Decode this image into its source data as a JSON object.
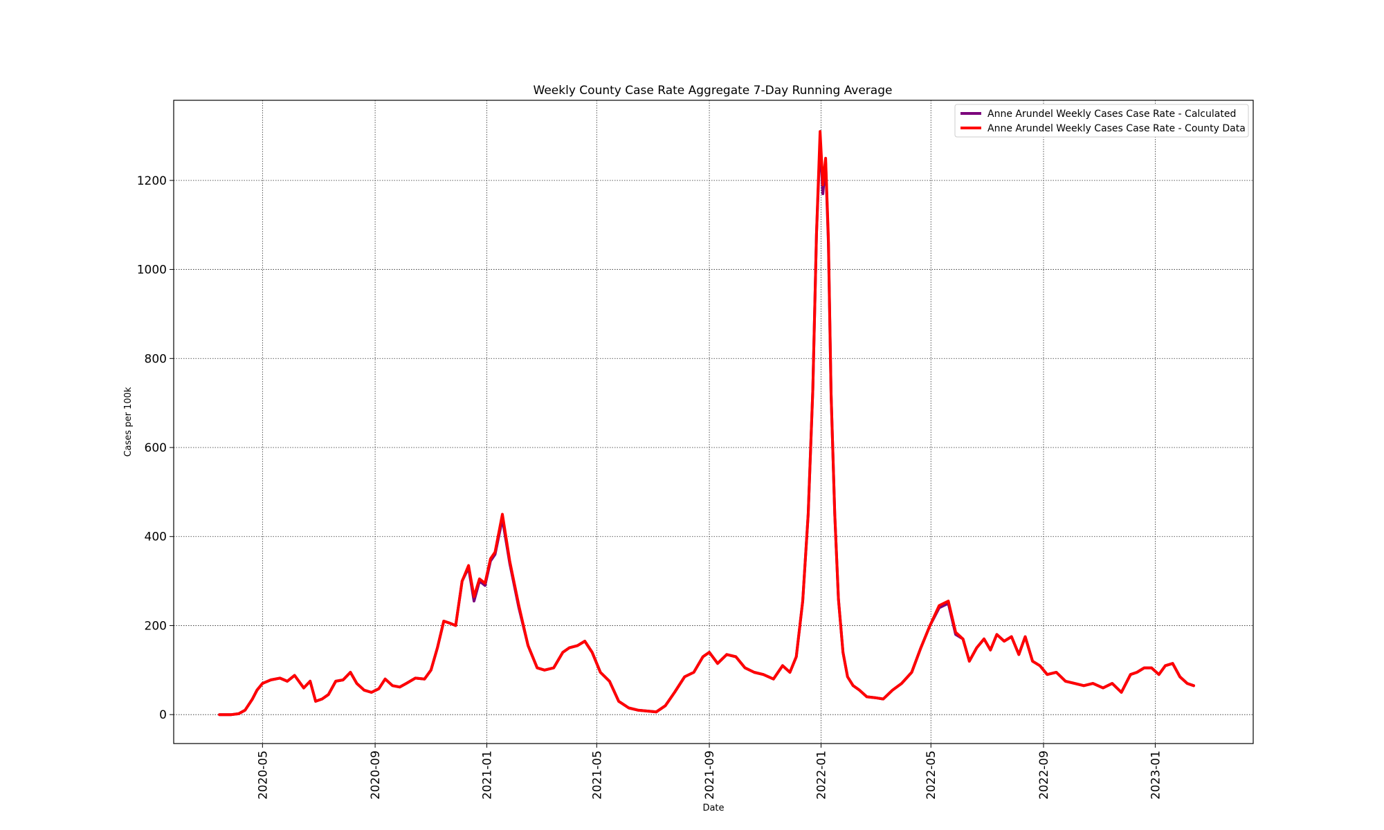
{
  "chart_data": {
    "type": "line",
    "title": "Weekly County Case Rate Aggregate 7-Day Running Average",
    "xlabel": "Date",
    "ylabel": "Cases per 100k",
    "ylim": [
      -65,
      1380
    ],
    "yticks": [
      0,
      200,
      400,
      600,
      800,
      1000,
      1200
    ],
    "xlim": [
      "2020-01-25",
      "2023-04-18"
    ],
    "xticks": [
      "2020-05",
      "2020-09",
      "2021-01",
      "2021-05",
      "2021-09",
      "2022-01",
      "2022-05",
      "2022-09",
      "2023-01"
    ],
    "grid": true,
    "legend_position": "top-right",
    "series": [
      {
        "name": "Anne Arundel Weekly Cases Case Rate - Calculated",
        "color": "#7B007B",
        "x": [
          "2020-03-15",
          "2020-03-28",
          "2020-04-05",
          "2020-04-12",
          "2020-04-20",
          "2020-04-25",
          "2020-05-01",
          "2020-05-10",
          "2020-05-20",
          "2020-05-28",
          "2020-06-05",
          "2020-06-15",
          "2020-06-22",
          "2020-06-28",
          "2020-07-05",
          "2020-07-12",
          "2020-07-20",
          "2020-07-28",
          "2020-08-05",
          "2020-08-12",
          "2020-08-20",
          "2020-08-28",
          "2020-09-05",
          "2020-09-12",
          "2020-09-20",
          "2020-09-28",
          "2020-10-05",
          "2020-10-15",
          "2020-10-25",
          "2020-11-01",
          "2020-11-08",
          "2020-11-15",
          "2020-11-22",
          "2020-11-28",
          "2020-12-05",
          "2020-12-12",
          "2020-12-18",
          "2020-12-24",
          "2020-12-30",
          "2021-01-05",
          "2021-01-10",
          "2021-01-18",
          "2021-01-26",
          "2021-02-05",
          "2021-02-15",
          "2021-02-25",
          "2021-03-05",
          "2021-03-15",
          "2021-03-25",
          "2021-04-01",
          "2021-04-10",
          "2021-04-18",
          "2021-04-26",
          "2021-05-05",
          "2021-05-15",
          "2021-05-25",
          "2021-06-05",
          "2021-06-15",
          "2021-06-25",
          "2021-07-05",
          "2021-07-15",
          "2021-07-25",
          "2021-08-05",
          "2021-08-15",
          "2021-08-25",
          "2021-09-01",
          "2021-09-10",
          "2021-09-20",
          "2021-09-30",
          "2021-10-10",
          "2021-10-20",
          "2021-10-30",
          "2021-11-10",
          "2021-11-20",
          "2021-11-28",
          "2021-12-05",
          "2021-12-12",
          "2021-12-18",
          "2021-12-23",
          "2021-12-27",
          "2021-12-31",
          "2022-01-03",
          "2022-01-06",
          "2022-01-09",
          "2022-01-12",
          "2022-01-16",
          "2022-01-20",
          "2022-01-25",
          "2022-01-30",
          "2022-02-05",
          "2022-02-12",
          "2022-02-20",
          "2022-03-01",
          "2022-03-10",
          "2022-03-20",
          "2022-03-30",
          "2022-04-10",
          "2022-04-20",
          "2022-04-30",
          "2022-05-10",
          "2022-05-20",
          "2022-05-28",
          "2022-06-05",
          "2022-06-12",
          "2022-06-20",
          "2022-06-28",
          "2022-07-05",
          "2022-07-12",
          "2022-07-20",
          "2022-07-28",
          "2022-08-05",
          "2022-08-12",
          "2022-08-20",
          "2022-08-28",
          "2022-09-05",
          "2022-09-15",
          "2022-09-25",
          "2022-10-05",
          "2022-10-15",
          "2022-10-25",
          "2022-11-05",
          "2022-11-15",
          "2022-11-25",
          "2022-12-05",
          "2022-12-12",
          "2022-12-20",
          "2022-12-28",
          "2023-01-05",
          "2023-01-12",
          "2023-01-20",
          "2023-01-28",
          "2023-02-05",
          "2023-02-12"
        ],
        "values": [
          0,
          0,
          2,
          10,
          35,
          55,
          70,
          78,
          82,
          75,
          88,
          60,
          75,
          30,
          35,
          45,
          75,
          78,
          95,
          70,
          55,
          50,
          58,
          80,
          65,
          62,
          70,
          82,
          80,
          100,
          150,
          210,
          205,
          200,
          300,
          330,
          255,
          300,
          290,
          345,
          360,
          440,
          340,
          240,
          155,
          105,
          100,
          105,
          140,
          150,
          155,
          165,
          140,
          95,
          75,
          30,
          15,
          10,
          8,
          6,
          20,
          50,
          85,
          95,
          130,
          140,
          115,
          135,
          130,
          105,
          95,
          90,
          80,
          110,
          95,
          130,
          255,
          450,
          730,
          1080,
          1290,
          1170,
          1240,
          1060,
          720,
          450,
          260,
          140,
          85,
          65,
          55,
          40,
          38,
          35,
          55,
          70,
          95,
          150,
          200,
          240,
          250,
          180,
          170,
          120,
          150,
          170,
          145,
          180,
          165,
          175,
          135,
          175,
          120,
          110,
          90,
          95,
          75,
          70,
          65,
          70,
          60,
          70,
          50,
          90,
          95,
          105,
          105,
          90,
          110,
          115,
          85,
          70,
          65
        ]
      },
      {
        "name": "Anne Arundel Weekly Cases Case Rate - County Data",
        "color": "#FF0000",
        "x": [
          "2020-03-15",
          "2020-03-28",
          "2020-04-05",
          "2020-04-12",
          "2020-04-20",
          "2020-04-25",
          "2020-05-01",
          "2020-05-10",
          "2020-05-20",
          "2020-05-28",
          "2020-06-05",
          "2020-06-15",
          "2020-06-22",
          "2020-06-28",
          "2020-07-05",
          "2020-07-12",
          "2020-07-20",
          "2020-07-28",
          "2020-08-05",
          "2020-08-12",
          "2020-08-20",
          "2020-08-28",
          "2020-09-05",
          "2020-09-12",
          "2020-09-20",
          "2020-09-28",
          "2020-10-05",
          "2020-10-15",
          "2020-10-25",
          "2020-11-01",
          "2020-11-08",
          "2020-11-15",
          "2020-11-22",
          "2020-11-28",
          "2020-12-05",
          "2020-12-12",
          "2020-12-18",
          "2020-12-24",
          "2020-12-30",
          "2021-01-05",
          "2021-01-10",
          "2021-01-18",
          "2021-01-26",
          "2021-02-05",
          "2021-02-15",
          "2021-02-25",
          "2021-03-05",
          "2021-03-15",
          "2021-03-25",
          "2021-04-01",
          "2021-04-10",
          "2021-04-18",
          "2021-04-26",
          "2021-05-05",
          "2021-05-15",
          "2021-05-25",
          "2021-06-05",
          "2021-06-15",
          "2021-06-25",
          "2021-07-05",
          "2021-07-15",
          "2021-07-25",
          "2021-08-05",
          "2021-08-15",
          "2021-08-25",
          "2021-09-01",
          "2021-09-10",
          "2021-09-20",
          "2021-09-30",
          "2021-10-10",
          "2021-10-20",
          "2021-10-30",
          "2021-11-10",
          "2021-11-20",
          "2021-11-28",
          "2021-12-05",
          "2021-12-12",
          "2021-12-18",
          "2021-12-23",
          "2021-12-27",
          "2021-12-31",
          "2022-01-03",
          "2022-01-06",
          "2022-01-09",
          "2022-01-12",
          "2022-01-16",
          "2022-01-20",
          "2022-01-25",
          "2022-01-30",
          "2022-02-05",
          "2022-02-12",
          "2022-02-20",
          "2022-03-01",
          "2022-03-10",
          "2022-03-20",
          "2022-03-30",
          "2022-04-10",
          "2022-04-20",
          "2022-04-30",
          "2022-05-10",
          "2022-05-20",
          "2022-05-28",
          "2022-06-05",
          "2022-06-12",
          "2022-06-20",
          "2022-06-28",
          "2022-07-05",
          "2022-07-12",
          "2022-07-20",
          "2022-07-28",
          "2022-08-05",
          "2022-08-12",
          "2022-08-20",
          "2022-08-28",
          "2022-09-05",
          "2022-09-15",
          "2022-09-25",
          "2022-10-05",
          "2022-10-15",
          "2022-10-25",
          "2022-11-05",
          "2022-11-15",
          "2022-11-25",
          "2022-12-05",
          "2022-12-12",
          "2022-12-20",
          "2022-12-28",
          "2023-01-05",
          "2023-01-12",
          "2023-01-20",
          "2023-01-28",
          "2023-02-05",
          "2023-02-12"
        ],
        "values": [
          0,
          0,
          2,
          10,
          35,
          55,
          70,
          78,
          82,
          75,
          88,
          60,
          75,
          30,
          35,
          45,
          75,
          78,
          95,
          70,
          55,
          50,
          58,
          80,
          65,
          62,
          70,
          82,
          80,
          100,
          150,
          210,
          205,
          200,
          300,
          335,
          265,
          305,
          295,
          350,
          365,
          450,
          345,
          245,
          155,
          105,
          100,
          105,
          140,
          150,
          155,
          165,
          140,
          95,
          75,
          30,
          15,
          10,
          8,
          6,
          20,
          50,
          85,
          95,
          130,
          140,
          115,
          135,
          130,
          105,
          95,
          90,
          80,
          110,
          95,
          130,
          255,
          450,
          730,
          1080,
          1310,
          1190,
          1250,
          1070,
          720,
          450,
          260,
          140,
          85,
          65,
          55,
          40,
          38,
          35,
          55,
          70,
          95,
          150,
          200,
          245,
          255,
          185,
          170,
          120,
          150,
          170,
          145,
          180,
          165,
          175,
          135,
          175,
          120,
          110,
          90,
          95,
          75,
          70,
          65,
          70,
          60,
          70,
          50,
          90,
          95,
          105,
          105,
          90,
          110,
          115,
          85,
          70,
          65
        ]
      }
    ]
  }
}
